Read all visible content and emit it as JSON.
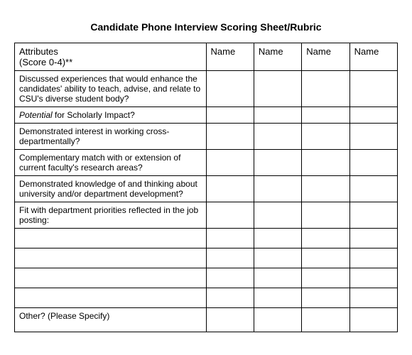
{
  "type": "table",
  "title": "Candidate Phone Interview Scoring Sheet/Rubric",
  "header": {
    "attr_label_line1": "Attributes",
    "attr_label_line2": "(Score 0-4)**",
    "name_col": "Name"
  },
  "rows": [
    {
      "text": "Discussed experiences that would enhance the candidates' ability to teach, advise, and relate to CSU's diverse student body?",
      "italic_prefix": "",
      "tall": true
    },
    {
      "text": " for Scholarly Impact?",
      "italic_prefix": "Potential"
    },
    {
      "text": "Demonstrated interest in working cross-departmentally?",
      "italic_prefix": ""
    },
    {
      "text": "Complementary match with or extension of current faculty's research areas?",
      "italic_prefix": ""
    },
    {
      "text": "Demonstrated knowledge of and thinking about university and/or department development?",
      "italic_prefix": ""
    },
    {
      "text": "Fit with department priorities reflected in the job posting:",
      "italic_prefix": ""
    },
    {
      "text": "",
      "italic_prefix": ""
    },
    {
      "text": "",
      "italic_prefix": ""
    },
    {
      "text": "",
      "italic_prefix": ""
    },
    {
      "text": "",
      "italic_prefix": ""
    },
    {
      "text": "Other? (Please Specify)",
      "italic_prefix": "",
      "tall": true
    }
  ],
  "colors": {
    "background": "#ffffff",
    "border": "#000000",
    "text": "#000000"
  },
  "fontsize": {
    "title": 14,
    "header": 13,
    "cell": 12
  }
}
